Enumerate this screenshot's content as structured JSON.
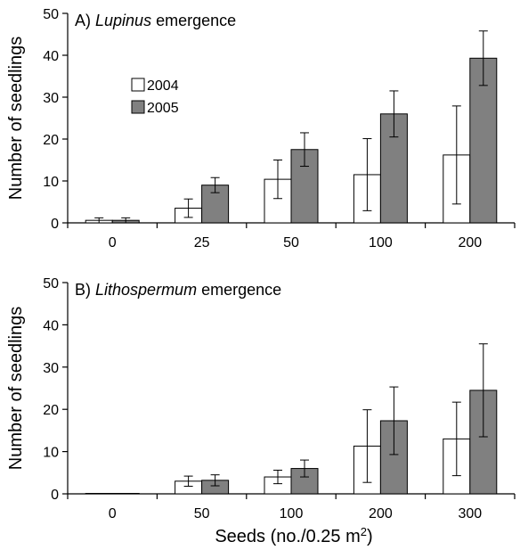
{
  "chart_data": [
    {
      "type": "bar",
      "panel_letter": "A)",
      "title_italic": "Lupinus",
      "title_rest": " emergence",
      "ylabel": "Number of seedlings",
      "ylim": [
        0,
        50
      ],
      "yticks": [
        0,
        10,
        20,
        30,
        40,
        50
      ],
      "categories": [
        "0",
        "25",
        "50",
        "100",
        "200"
      ],
      "series": [
        {
          "name": "2004",
          "color": "#ffffff",
          "values": [
            0.6,
            3.5,
            10.4,
            11.5,
            16.2
          ],
          "errors": [
            0.6,
            2.2,
            4.6,
            8.6,
            11.7
          ]
        },
        {
          "name": "2005",
          "color": "#808080",
          "values": [
            0.6,
            9.0,
            17.5,
            26.0,
            39.3
          ],
          "errors": [
            0.6,
            1.8,
            4.0,
            5.5,
            6.5
          ]
        }
      ],
      "legend": {
        "placement": "upper-left"
      }
    },
    {
      "type": "bar",
      "panel_letter": "B)",
      "title_italic": "Lithospermum",
      "title_rest": " emergence",
      "ylabel": "Number of seedlings",
      "ylim": [
        0,
        50
      ],
      "yticks": [
        0,
        10,
        20,
        30,
        40,
        50
      ],
      "categories": [
        "0",
        "50",
        "100",
        "200",
        "300"
      ],
      "series": [
        {
          "name": "2004",
          "color": "#ffffff",
          "values": [
            0,
            3.0,
            4.0,
            11.3,
            13.0
          ],
          "errors": [
            0,
            1.2,
            1.6,
            8.6,
            8.7
          ]
        },
        {
          "name": "2005",
          "color": "#808080",
          "values": [
            0,
            3.2,
            6.0,
            17.3,
            24.5
          ],
          "errors": [
            0,
            1.3,
            2.0,
            8.0,
            11.0
          ]
        }
      ]
    }
  ],
  "xlabel_main": "Seeds (no./0.25 m",
  "xlabel_sup": "2",
  "xlabel_end": ")"
}
